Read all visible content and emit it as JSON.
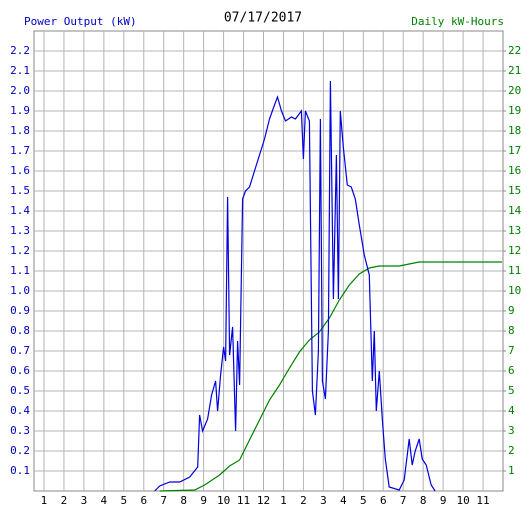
{
  "chart_data": {
    "type": "line",
    "title": "07/17/2017",
    "y_label": "Power Output (kW)",
    "y2_label": "Daily kW-Hours",
    "grid": true,
    "xlim": [
      0.5,
      24
    ],
    "xticks": [
      1,
      2,
      3,
      4,
      5,
      6,
      7,
      8,
      9,
      10,
      11,
      12,
      {
        "value": 13,
        "label": "1"
      },
      {
        "value": 14,
        "label": "2"
      },
      {
        "value": 15,
        "label": "3"
      },
      {
        "value": 16,
        "label": "4"
      },
      {
        "value": 17,
        "label": "5"
      },
      {
        "value": 18,
        "label": "6"
      },
      {
        "value": 19,
        "label": "7"
      },
      {
        "value": 20,
        "label": "8"
      },
      {
        "value": 21,
        "label": "9"
      },
      {
        "value": 22,
        "label": "10"
      },
      {
        "value": 23,
        "label": "11"
      }
    ],
    "ylim": [
      0,
      2.3
    ],
    "yticks": [
      0.1,
      0.2,
      0.3,
      0.4,
      0.5,
      0.6,
      0.7,
      0.8,
      0.9,
      {
        "value": 1.0,
        "label": "1.0"
      },
      1.1,
      1.2,
      1.3,
      1.4,
      1.5,
      1.6,
      1.7,
      1.8,
      1.9,
      {
        "value": 2.0,
        "label": "2.0"
      },
      2.1,
      2.2
    ],
    "y2lim": [
      0,
      23
    ],
    "y2ticks": [
      1,
      2,
      3,
      4,
      5,
      6,
      7,
      8,
      9,
      10,
      11,
      12,
      13,
      14,
      15,
      16,
      17,
      18,
      19,
      20,
      21,
      22
    ],
    "series": [
      {
        "color": "#0000e0",
        "axis": "y",
        "x": [
          6.55,
          6.8,
          7.3,
          7.8,
          8.3,
          8.7,
          8.8,
          8.95,
          9.2,
          9.4,
          9.6,
          9.7,
          9.85,
          10.0,
          10.1,
          10.2,
          10.3,
          10.45,
          10.6,
          10.7,
          10.8,
          10.95,
          11.1,
          11.3,
          11.55,
          11.8,
          12.05,
          12.3,
          12.55,
          12.7,
          12.9,
          13.1,
          13.4,
          13.6,
          13.9,
          14.0,
          14.1,
          14.3,
          14.45,
          14.6,
          14.75,
          14.85,
          14.95,
          15.1,
          15.25,
          15.35,
          15.5,
          15.65,
          15.75,
          15.85,
          16.0,
          16.2,
          16.4,
          16.6,
          16.8,
          17.05,
          17.3,
          17.45,
          17.55,
          17.65,
          17.8,
          17.95,
          18.1,
          18.3,
          18.8,
          19.05,
          19.3,
          19.45,
          19.6,
          19.8,
          19.95,
          20.15,
          20.4,
          20.6
        ],
        "values": [
          0,
          0.025,
          0.045,
          0.045,
          0.07,
          0.12,
          0.38,
          0.3,
          0.36,
          0.48,
          0.55,
          0.4,
          0.58,
          0.72,
          0.65,
          1.47,
          0.68,
          0.82,
          0.3,
          0.75,
          0.53,
          1.46,
          1.5,
          1.52,
          1.6,
          1.68,
          1.76,
          1.86,
          1.93,
          1.97,
          1.9,
          1.85,
          1.87,
          1.86,
          1.9,
          1.66,
          1.9,
          1.85,
          0.5,
          0.38,
          0.7,
          1.86,
          0.55,
          0.46,
          0.8,
          2.05,
          0.96,
          1.68,
          0.96,
          1.9,
          1.72,
          1.53,
          1.52,
          1.46,
          1.33,
          1.18,
          1.08,
          0.55,
          0.8,
          0.4,
          0.6,
          0.36,
          0.16,
          0.02,
          0.005,
          0.055,
          0.26,
          0.13,
          0.2,
          0.26,
          0.16,
          0.13,
          0.03,
          0
        ]
      },
      {
        "color": "#008000",
        "axis": "y2",
        "x": [
          6.8,
          8.55,
          9.05,
          9.8,
          10.3,
          10.8,
          11.3,
          11.8,
          12.3,
          12.8,
          13.3,
          13.8,
          14.3,
          14.8,
          15.3,
          15.8,
          16.3,
          16.8,
          17.3,
          17.8,
          18.8,
          19.3,
          19.8,
          20.3,
          23.95
        ],
        "values": [
          0,
          0.05,
          0.3,
          0.8,
          1.25,
          1.55,
          2.55,
          3.55,
          4.55,
          5.3,
          6.15,
          6.95,
          7.55,
          7.95,
          8.65,
          9.55,
          10.3,
          10.85,
          11.15,
          11.25,
          11.25,
          11.35,
          11.45,
          11.45,
          11.45
        ]
      }
    ]
  }
}
